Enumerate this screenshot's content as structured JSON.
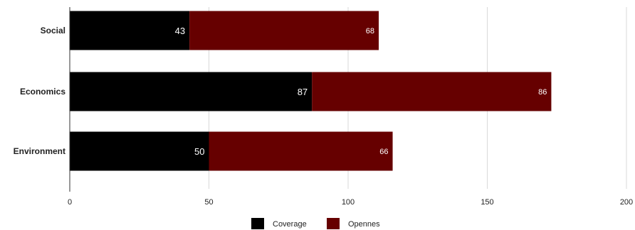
{
  "colors": {
    "coverage": "#000000",
    "opennes": "#660000",
    "grid": "#d9d9d9",
    "axis": "#333333"
  },
  "chart_data": {
    "type": "bar",
    "orientation": "horizontal",
    "stacked": true,
    "categories": [
      "Social",
      "Economics",
      "Environment"
    ],
    "series": [
      {
        "name": "Coverage",
        "values": [
          43,
          87,
          50
        ]
      },
      {
        "name": "Opennes",
        "values": [
          68,
          86,
          66
        ]
      }
    ],
    "xlim": [
      0,
      200
    ],
    "xticks": [
      0,
      50,
      100,
      150,
      200
    ],
    "grid": true,
    "legend": "bottom",
    "data_labels": true
  }
}
